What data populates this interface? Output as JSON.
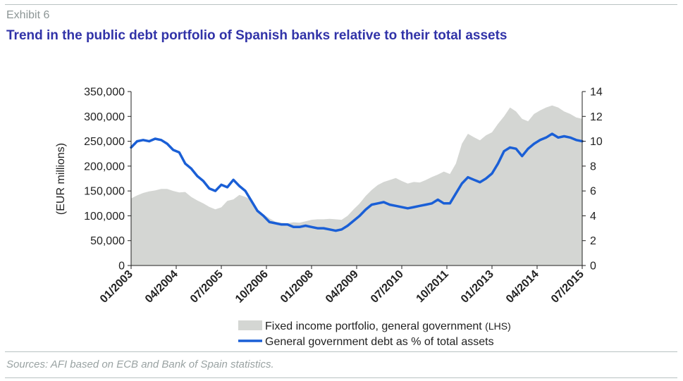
{
  "exhibit_label": "Exhibit 6",
  "title": "Trend in the public debt portfolio of Spanish banks relative to their total assets",
  "source": "Sources: AFI based on ECB and Bank of Spain statistics.",
  "colors": {
    "title": "#3133a8",
    "area": "#d4d6d3",
    "line": "#1a5fd6",
    "rule": "#b9c2c2"
  },
  "chart_data": {
    "type": "line",
    "ylabel": "(EUR millions)",
    "y_left": {
      "min": 0,
      "max": 350000,
      "ticks": [
        "0",
        "50,000",
        "100,000",
        "150,000",
        "200,000",
        "250,000",
        "300,000",
        "350,000"
      ]
    },
    "y_right": {
      "min": 0,
      "max": 14,
      "ticks": [
        "0",
        "2",
        "4",
        "6",
        "8",
        "10",
        "12",
        "14"
      ]
    },
    "x_range": [
      "2003-01",
      "2015-07"
    ],
    "x_ticks": [
      "01/2003",
      "04/2004",
      "07/2005",
      "10/2006",
      "01/2008",
      "04/2009",
      "07/2010",
      "10/2011",
      "01/2013",
      "04/2014",
      "07/2015"
    ],
    "grid": false,
    "legend_position": "bottom",
    "series": [
      {
        "name": "Fixed income portfolio, general government",
        "name_suffix": "(LHS)",
        "type": "area",
        "axis": "left",
        "points": [
          [
            "2003-01",
            135000
          ],
          [
            "2003-03",
            141000
          ],
          [
            "2003-05",
            146000
          ],
          [
            "2003-07",
            149000
          ],
          [
            "2003-09",
            151000
          ],
          [
            "2003-11",
            154000
          ],
          [
            "2004-01",
            154000
          ],
          [
            "2004-03",
            150000
          ],
          [
            "2004-05",
            147000
          ],
          [
            "2004-07",
            148000
          ],
          [
            "2004-09",
            138000
          ],
          [
            "2004-11",
            131000
          ],
          [
            "2005-01",
            125000
          ],
          [
            "2005-03",
            118000
          ],
          [
            "2005-05",
            113000
          ],
          [
            "2005-07",
            117000
          ],
          [
            "2005-09",
            130000
          ],
          [
            "2005-11",
            133000
          ],
          [
            "2006-01",
            142000
          ],
          [
            "2006-03",
            138000
          ],
          [
            "2006-05",
            132000
          ],
          [
            "2006-07",
            113000
          ],
          [
            "2006-09",
            103000
          ],
          [
            "2006-11",
            95000
          ],
          [
            "2007-01",
            88000
          ],
          [
            "2007-03",
            86000
          ],
          [
            "2007-05",
            85000
          ],
          [
            "2007-07",
            87000
          ],
          [
            "2007-09",
            86000
          ],
          [
            "2007-11",
            89000
          ],
          [
            "2008-01",
            92000
          ],
          [
            "2008-03",
            93000
          ],
          [
            "2008-05",
            93000
          ],
          [
            "2008-07",
            94000
          ],
          [
            "2008-09",
            93000
          ],
          [
            "2008-11",
            92000
          ],
          [
            "2009-01",
            100000
          ],
          [
            "2009-03",
            113000
          ],
          [
            "2009-05",
            125000
          ],
          [
            "2009-07",
            140000
          ],
          [
            "2009-09",
            152000
          ],
          [
            "2009-11",
            162000
          ],
          [
            "2010-01",
            168000
          ],
          [
            "2010-03",
            172000
          ],
          [
            "2010-05",
            176000
          ],
          [
            "2010-07",
            170000
          ],
          [
            "2010-09",
            165000
          ],
          [
            "2010-11",
            168000
          ],
          [
            "2011-01",
            167000
          ],
          [
            "2011-03",
            172000
          ],
          [
            "2011-05",
            178000
          ],
          [
            "2011-07",
            183000
          ],
          [
            "2011-09",
            189000
          ],
          [
            "2011-11",
            184000
          ],
          [
            "2012-01",
            205000
          ],
          [
            "2012-03",
            245000
          ],
          [
            "2012-05",
            265000
          ],
          [
            "2012-07",
            258000
          ],
          [
            "2012-09",
            252000
          ],
          [
            "2012-11",
            262000
          ],
          [
            "2013-01",
            268000
          ],
          [
            "2013-03",
            285000
          ],
          [
            "2013-05",
            300000
          ],
          [
            "2013-07",
            318000
          ],
          [
            "2013-09",
            310000
          ],
          [
            "2013-11",
            295000
          ],
          [
            "2014-01",
            290000
          ],
          [
            "2014-03",
            305000
          ],
          [
            "2014-05",
            312000
          ],
          [
            "2014-07",
            318000
          ],
          [
            "2014-09",
            322000
          ],
          [
            "2014-11",
            318000
          ],
          [
            "2015-01",
            310000
          ],
          [
            "2015-03",
            305000
          ],
          [
            "2015-05",
            298000
          ],
          [
            "2015-07",
            295000
          ]
        ]
      },
      {
        "name": "General government debt as % of total assets",
        "name_suffix": "",
        "type": "line",
        "axis": "right",
        "points": [
          [
            "2003-01",
            9.5
          ],
          [
            "2003-03",
            10.0
          ],
          [
            "2003-05",
            10.1
          ],
          [
            "2003-07",
            10.0
          ],
          [
            "2003-09",
            10.2
          ],
          [
            "2003-11",
            10.1
          ],
          [
            "2004-01",
            9.8
          ],
          [
            "2004-03",
            9.3
          ],
          [
            "2004-05",
            9.1
          ],
          [
            "2004-07",
            8.2
          ],
          [
            "2004-09",
            7.8
          ],
          [
            "2004-11",
            7.2
          ],
          [
            "2005-01",
            6.8
          ],
          [
            "2005-03",
            6.2
          ],
          [
            "2005-05",
            6.0
          ],
          [
            "2005-07",
            6.5
          ],
          [
            "2005-09",
            6.3
          ],
          [
            "2005-11",
            6.9
          ],
          [
            "2006-01",
            6.4
          ],
          [
            "2006-03",
            6.0
          ],
          [
            "2006-05",
            5.2
          ],
          [
            "2006-07",
            4.4
          ],
          [
            "2006-09",
            4.0
          ],
          [
            "2006-11",
            3.5
          ],
          [
            "2007-01",
            3.4
          ],
          [
            "2007-03",
            3.3
          ],
          [
            "2007-05",
            3.3
          ],
          [
            "2007-07",
            3.1
          ],
          [
            "2007-09",
            3.1
          ],
          [
            "2007-11",
            3.2
          ],
          [
            "2008-01",
            3.1
          ],
          [
            "2008-03",
            3.0
          ],
          [
            "2008-05",
            3.0
          ],
          [
            "2008-07",
            2.9
          ],
          [
            "2008-09",
            2.8
          ],
          [
            "2008-11",
            2.9
          ],
          [
            "2009-01",
            3.2
          ],
          [
            "2009-03",
            3.6
          ],
          [
            "2009-05",
            4.0
          ],
          [
            "2009-07",
            4.5
          ],
          [
            "2009-09",
            4.9
          ],
          [
            "2009-11",
            5.0
          ],
          [
            "2010-01",
            5.1
          ],
          [
            "2010-03",
            4.9
          ],
          [
            "2010-05",
            4.8
          ],
          [
            "2010-07",
            4.7
          ],
          [
            "2010-09",
            4.6
          ],
          [
            "2010-11",
            4.7
          ],
          [
            "2011-01",
            4.8
          ],
          [
            "2011-03",
            4.9
          ],
          [
            "2011-05",
            5.0
          ],
          [
            "2011-07",
            5.3
          ],
          [
            "2011-09",
            5.0
          ],
          [
            "2011-11",
            5.0
          ],
          [
            "2012-01",
            5.8
          ],
          [
            "2012-03",
            6.6
          ],
          [
            "2012-05",
            7.1
          ],
          [
            "2012-07",
            6.9
          ],
          [
            "2012-09",
            6.7
          ],
          [
            "2012-11",
            7.0
          ],
          [
            "2013-01",
            7.4
          ],
          [
            "2013-03",
            8.2
          ],
          [
            "2013-05",
            9.2
          ],
          [
            "2013-07",
            9.5
          ],
          [
            "2013-09",
            9.4
          ],
          [
            "2013-11",
            8.8
          ],
          [
            "2014-01",
            9.4
          ],
          [
            "2014-03",
            9.8
          ],
          [
            "2014-05",
            10.1
          ],
          [
            "2014-07",
            10.3
          ],
          [
            "2014-09",
            10.6
          ],
          [
            "2014-11",
            10.3
          ],
          [
            "2015-01",
            10.4
          ],
          [
            "2015-03",
            10.3
          ],
          [
            "2015-05",
            10.1
          ],
          [
            "2015-07",
            10.0
          ]
        ]
      }
    ]
  }
}
